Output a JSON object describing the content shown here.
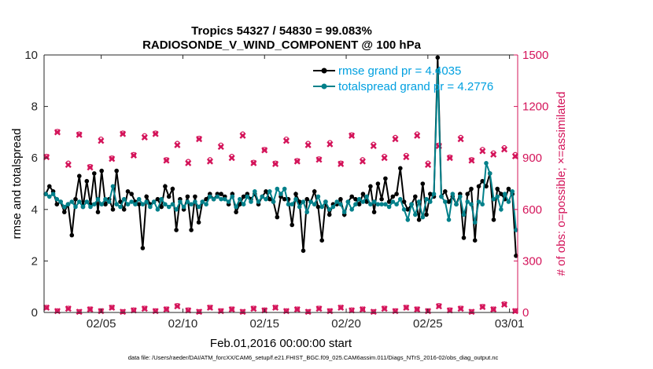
{
  "chart_data": {
    "type": "line",
    "title_line1": "Tropics 54327 / 54830 = 99.083%",
    "title_line2": "RADIOSONDE_V_WIND_COMPONENT @ 100 hPa",
    "xlabel": "Feb.01,2016 00:00:00 start",
    "ylabel_left": "rmse and totalspread",
    "ylabel_right": "# of obs: o=possible; ×=assimilated",
    "ylim_left": [
      0,
      10
    ],
    "ylim_right": [
      0,
      1500
    ],
    "xlim_days": [
      0.5,
      29.5
    ],
    "x_ticks": [
      {
        "day": 4,
        "label": "02/05"
      },
      {
        "day": 9,
        "label": "02/10"
      },
      {
        "day": 14,
        "label": "02/15"
      },
      {
        "day": 19,
        "label": "02/20"
      },
      {
        "day": 24,
        "label": "02/25"
      },
      {
        "day": 29,
        "label": "03/01"
      }
    ],
    "y_ticks_left": [
      "0",
      "2",
      "4",
      "6",
      "8",
      "10"
    ],
    "y_ticks_right": [
      "0",
      "300",
      "600",
      "900",
      "1200",
      "1500"
    ],
    "footer": "data file: /Users/raeder/DAI/ATM_forcXX/CAM6_setup/f.e21.FHIST_BGC.f09_025.CAM6assim.011/Diags_NTrS_2016-02/obs_diag_output.nc",
    "colors": {
      "rmse": "#000000",
      "spread": "#00808a",
      "obs": "#d4145a",
      "legend_text": "#00a0e0"
    },
    "series": [
      {
        "name": "rmse grand pr = 4.4035",
        "values": [
          4.6,
          4.9,
          4.7,
          4.2,
          4.3,
          3.9,
          4.2,
          3.0,
          4.4,
          5.3,
          4.1,
          5.1,
          4.2,
          5.4,
          3.9,
          5.5,
          4.2,
          4.4,
          4.0,
          5.5,
          4.3,
          4.0,
          4.7,
          4.6,
          4.3,
          4.2,
          2.5,
          4.5,
          4.2,
          4.3,
          4.4,
          4.1,
          4.9,
          4.5,
          4.8,
          3.2,
          4.4,
          4.0,
          4.5,
          3.2,
          4.5,
          3.5,
          4.3,
          4.4,
          4.6,
          4.4,
          4.6,
          4.6,
          4.5,
          4.2,
          4.6,
          3.9,
          4.2,
          4.5,
          4.6,
          4.4,
          4.6,
          4.2,
          4.5,
          4.7,
          4.4,
          4.3,
          3.7,
          4.5,
          4.4,
          4.4,
          3.4,
          4.6,
          4.3,
          2.4,
          4.4,
          4.3,
          4.7,
          4.1,
          2.8,
          4.3,
          3.8,
          4.2,
          4.2,
          4.4,
          3.8,
          4.3,
          4.5,
          4.4,
          4.2,
          4.6,
          4.3,
          4.9,
          3.9,
          5.0,
          4.4,
          5.2,
          4.3,
          4.5,
          4.6,
          5.6,
          4.3,
          4.0,
          4.2,
          4.5,
          3.6,
          5.0,
          3.8,
          4.6,
          4.5,
          9.9,
          4.5,
          4.7,
          4.3,
          4.5,
          4.2,
          4.6,
          2.9,
          4.6,
          4.8,
          2.8,
          4.9,
          5.1,
          4.9,
          5.4,
          3.6,
          4.8,
          4.6,
          4.4,
          4.8,
          4.6,
          2.2
        ]
      },
      {
        "name": "totalspread grand pr = 4.2776",
        "values": [
          4.6,
          4.5,
          4.6,
          4.4,
          4.3,
          4.1,
          4.2,
          4.3,
          4.1,
          4.3,
          4.1,
          4.3,
          4.1,
          4.2,
          4.4,
          4.2,
          4.4,
          4.3,
          4.9,
          4.2,
          4.1,
          4.4,
          4.2,
          4.3,
          4.2,
          4.4,
          4.2,
          4.3,
          4.1,
          4.3,
          4.0,
          4.4,
          4.2,
          4.1,
          4.2,
          4.0,
          4.3,
          4.1,
          4.3,
          4.2,
          4.3,
          4.1,
          4.3,
          4.2,
          4.5,
          4.4,
          4.5,
          4.4,
          4.4,
          4.3,
          4.5,
          4.1,
          4.4,
          4.2,
          4.5,
          4.3,
          4.7,
          4.3,
          4.5,
          4.4,
          4.7,
          4.3,
          4.8,
          4.6,
          4.8,
          4.2,
          4.2,
          4.4,
          4.1,
          4.3,
          3.9,
          4.3,
          4.2,
          4.5,
          4.1,
          4.3,
          4.0,
          4.1,
          4.3,
          4.2,
          3.9,
          4.3,
          4.0,
          4.2,
          4.4,
          4.3,
          4.5,
          4.2,
          4.3,
          4.2,
          4.2,
          4.2,
          4.1,
          4.3,
          4.2,
          4.4,
          4.0,
          3.6,
          4.2,
          3.8,
          4.3,
          3.7,
          4.4,
          4.3,
          4.6,
          9.4,
          4.5,
          4.3,
          3.6,
          4.6,
          4.2,
          4.5,
          3.8,
          4.3,
          4.2,
          3.5,
          4.3,
          4.2,
          5.8,
          5.4,
          4.4,
          4.5,
          4.0,
          4.6,
          4.3,
          4.7,
          3.2
        ]
      }
    ],
    "obs_possible": [
      910,
      1055,
      870,
      1040,
      850,
      1010,
      900,
      1045,
      920,
      1030,
      1045,
      890,
      985,
      880,
      1015,
      890,
      975,
      910,
      1040,
      875,
      950,
      870,
      1010,
      885,
      985,
      895,
      990,
      870,
      1035,
      890,
      980,
      910,
      1020,
      915,
      1040,
      870,
      975,
      905,
      1020,
      890,
      950,
      930,
      960,
      920
    ],
    "obs_assimilated": [
      905,
      1050,
      860,
      1035,
      845,
      1000,
      895,
      1040,
      915,
      1020,
      1040,
      885,
      975,
      870,
      1010,
      880,
      965,
      900,
      1030,
      870,
      945,
      865,
      1000,
      880,
      975,
      890,
      980,
      865,
      1030,
      880,
      970,
      900,
      1010,
      905,
      1030,
      860,
      970,
      900,
      1010,
      885,
      940,
      920,
      950,
      910
    ],
    "obs_possible_low": [
      30,
      10,
      25,
      5,
      20,
      10,
      30,
      5,
      15,
      25,
      10,
      20,
      40,
      15,
      5,
      30,
      10,
      20,
      5,
      25,
      15,
      30,
      10,
      20,
      5,
      25,
      10,
      30,
      15,
      20,
      5,
      25,
      10,
      30,
      20,
      10,
      40,
      15,
      25,
      5,
      35,
      20,
      50,
      10
    ],
    "obs_assimilated_low": [
      28,
      8,
      22,
      4,
      18,
      8,
      28,
      4,
      12,
      22,
      8,
      18,
      36,
      12,
      4,
      28,
      8,
      18,
      4,
      22,
      12,
      28,
      8,
      18,
      4,
      22,
      8,
      28,
      12,
      18,
      4,
      22,
      8,
      28,
      18,
      8,
      36,
      12,
      22,
      4,
      32,
      18,
      46,
      8
    ]
  }
}
